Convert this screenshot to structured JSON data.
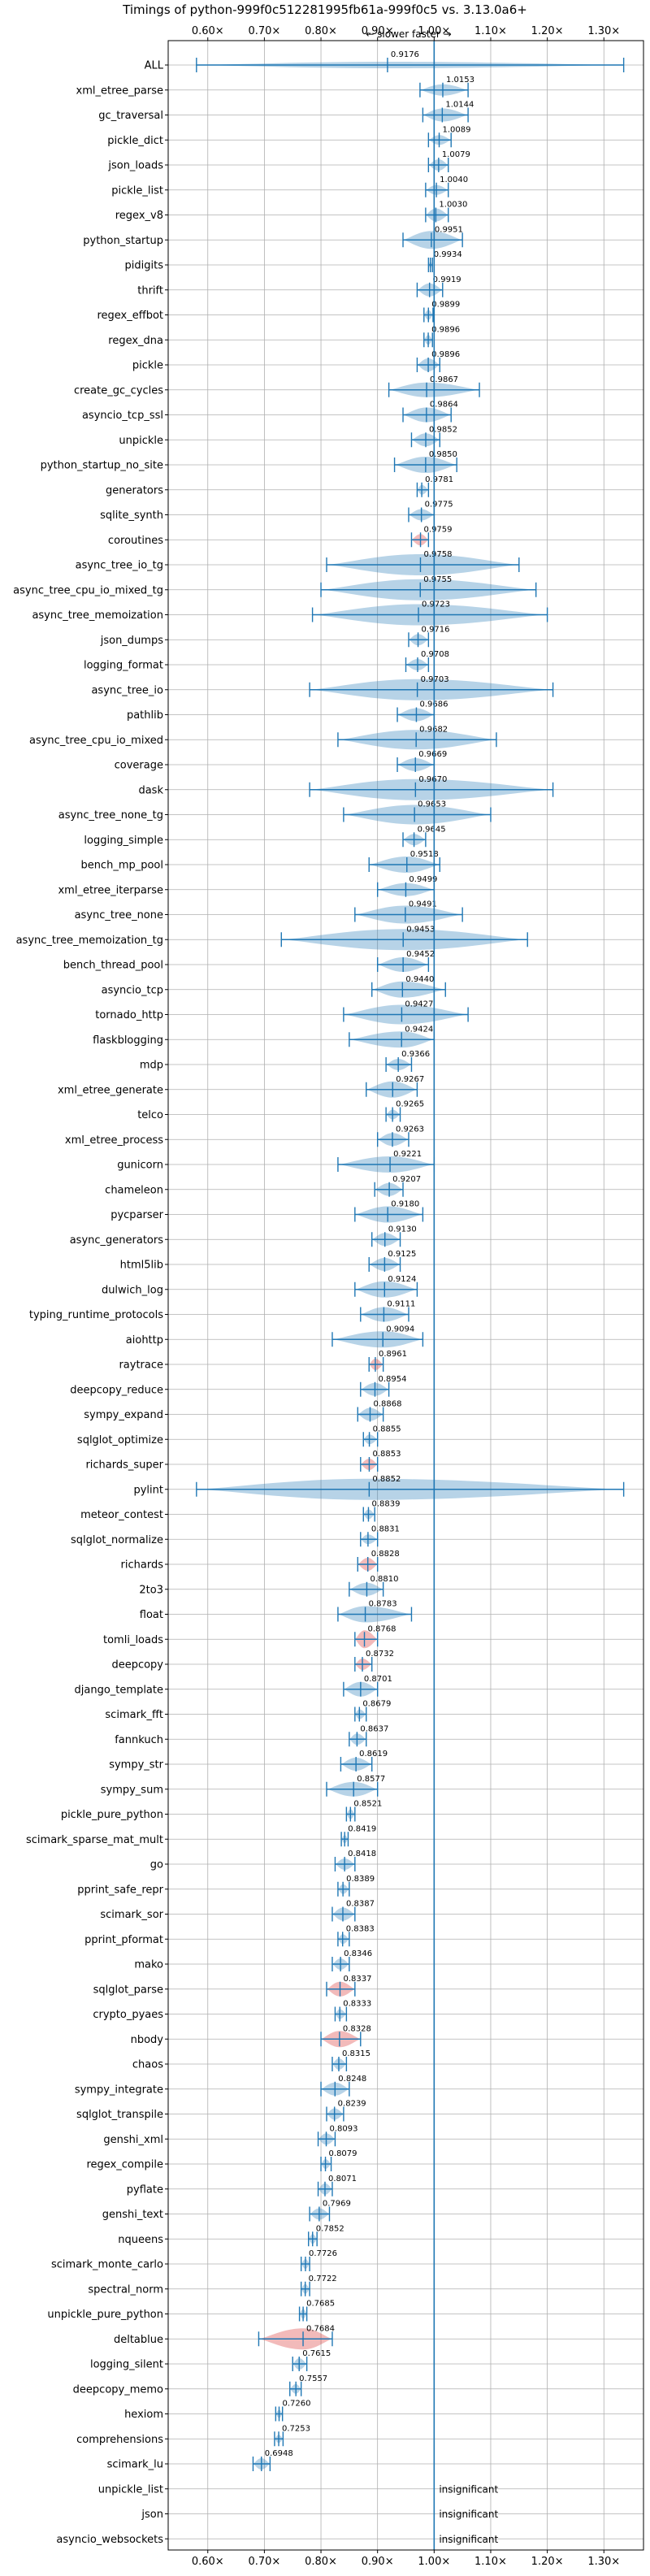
{
  "chart_data": {
    "type": "violin",
    "title": "Timings of python-999f0c512281995fb61a-999f0c5 vs. 3.13.0a6+",
    "annotation": "← slower    faster →",
    "xlim": [
      0.53,
      1.37
    ],
    "xticks": [
      0.6,
      0.7,
      0.8,
      0.9,
      1.0,
      1.1,
      1.2,
      1.3
    ],
    "xtick_labels": [
      "0.60×",
      "0.70×",
      "0.80×",
      "0.90×",
      "1.00×",
      "1.10×",
      "1.20×",
      "1.30×"
    ],
    "reference_line": 1.0,
    "grid": true,
    "colors": {
      "normal": "#1f77b4",
      "regression": "#d62728",
      "axis": "#000000",
      "grid": "#b0b0b0"
    },
    "benchmarks": [
      {
        "name": "ALL",
        "value": 0.9176,
        "lo": 0.58,
        "hi": 1.335,
        "half": 4
      },
      {
        "name": "xml_etree_parse",
        "value": 1.0153,
        "lo": 0.975,
        "hi": 1.06,
        "half": 7
      },
      {
        "name": "gc_traversal",
        "value": 1.0144,
        "lo": 0.98,
        "hi": 1.06,
        "half": 8
      },
      {
        "name": "pickle_dict",
        "value": 1.0089,
        "lo": 0.99,
        "hi": 1.03,
        "half": 6
      },
      {
        "name": "json_loads",
        "value": 1.0079,
        "lo": 0.99,
        "hi": 1.025,
        "half": 7
      },
      {
        "name": "pickle_list",
        "value": 1.004,
        "lo": 0.985,
        "hi": 1.025,
        "half": 6
      },
      {
        "name": "regex_v8",
        "value": 1.003,
        "lo": 0.985,
        "hi": 1.025,
        "half": 8
      },
      {
        "name": "python_startup",
        "value": 0.9951,
        "lo": 0.945,
        "hi": 1.05,
        "half": 11
      },
      {
        "name": "pidigits",
        "value": 0.9934,
        "lo": 0.99,
        "hi": 0.997,
        "half": 4
      },
      {
        "name": "thrift",
        "value": 0.9919,
        "lo": 0.97,
        "hi": 1.015,
        "half": 8
      },
      {
        "name": "regex_effbot",
        "value": 0.9899,
        "lo": 0.982,
        "hi": 0.998,
        "half": 6
      },
      {
        "name": "regex_dna",
        "value": 0.9896,
        "lo": 0.982,
        "hi": 0.997,
        "half": 6
      },
      {
        "name": "pickle",
        "value": 0.9896,
        "lo": 0.97,
        "hi": 1.01,
        "half": 8
      },
      {
        "name": "create_gc_cycles",
        "value": 0.9867,
        "lo": 0.92,
        "hi": 1.08,
        "half": 9
      },
      {
        "name": "asyncio_tcp_ssl",
        "value": 0.9864,
        "lo": 0.945,
        "hi": 1.03,
        "half": 9
      },
      {
        "name": "unpickle",
        "value": 0.9852,
        "lo": 0.96,
        "hi": 1.01,
        "half": 8
      },
      {
        "name": "python_startup_no_site",
        "value": 0.985,
        "lo": 0.93,
        "hi": 1.04,
        "half": 10
      },
      {
        "name": "generators",
        "value": 0.9781,
        "lo": 0.97,
        "hi": 0.99,
        "half": 6
      },
      {
        "name": "sqlite_synth",
        "value": 0.9775,
        "lo": 0.955,
        "hi": 1.0,
        "half": 7
      },
      {
        "name": "coroutines",
        "value": 0.9759,
        "lo": 0.96,
        "hi": 0.99,
        "half": 7,
        "regression": true
      },
      {
        "name": "async_tree_io_tg",
        "value": 0.9758,
        "lo": 0.81,
        "hi": 1.15,
        "half": 13
      },
      {
        "name": "async_tree_cpu_io_mixed_tg",
        "value": 0.9755,
        "lo": 0.8,
        "hi": 1.18,
        "half": 13
      },
      {
        "name": "async_tree_memoization",
        "value": 0.9723,
        "lo": 0.785,
        "hi": 1.2,
        "half": 13
      },
      {
        "name": "json_dumps",
        "value": 0.9716,
        "lo": 0.955,
        "hi": 0.99,
        "half": 7
      },
      {
        "name": "logging_format",
        "value": 0.9708,
        "lo": 0.95,
        "hi": 0.99,
        "half": 7
      },
      {
        "name": "async_tree_io",
        "value": 0.9703,
        "lo": 0.78,
        "hi": 1.21,
        "half": 13
      },
      {
        "name": "pathlib",
        "value": 0.9686,
        "lo": 0.935,
        "hi": 1.0,
        "half": 8
      },
      {
        "name": "async_tree_cpu_io_mixed",
        "value": 0.9682,
        "lo": 0.83,
        "hi": 1.11,
        "half": 12
      },
      {
        "name": "coverage",
        "value": 0.9669,
        "lo": 0.935,
        "hi": 1.0,
        "half": 8
      },
      {
        "name": "dask",
        "value": 0.967,
        "lo": 0.78,
        "hi": 1.21,
        "half": 13
      },
      {
        "name": "async_tree_none_tg",
        "value": 0.9653,
        "lo": 0.84,
        "hi": 1.1,
        "half": 12
      },
      {
        "name": "logging_simple",
        "value": 0.9645,
        "lo": 0.945,
        "hi": 0.985,
        "half": 7
      },
      {
        "name": "bench_mp_pool",
        "value": 0.9518,
        "lo": 0.885,
        "hi": 1.01,
        "half": 10
      },
      {
        "name": "xml_etree_iterparse",
        "value": 0.9499,
        "lo": 0.9,
        "hi": 1.0,
        "half": 8
      },
      {
        "name": "async_tree_none",
        "value": 0.9491,
        "lo": 0.86,
        "hi": 1.05,
        "half": 11
      },
      {
        "name": "async_tree_memoization_tg",
        "value": 0.9453,
        "lo": 0.73,
        "hi": 1.165,
        "half": 13
      },
      {
        "name": "bench_thread_pool",
        "value": 0.9452,
        "lo": 0.9,
        "hi": 0.99,
        "half": 9
      },
      {
        "name": "asyncio_tcp",
        "value": 0.944,
        "lo": 0.89,
        "hi": 1.02,
        "half": 10
      },
      {
        "name": "tornado_http",
        "value": 0.9427,
        "lo": 0.84,
        "hi": 1.06,
        "half": 12
      },
      {
        "name": "flaskblogging",
        "value": 0.9424,
        "lo": 0.85,
        "hi": 1.0,
        "half": 10
      },
      {
        "name": "mdp",
        "value": 0.9366,
        "lo": 0.915,
        "hi": 0.96,
        "half": 7
      },
      {
        "name": "xml_etree_generate",
        "value": 0.9267,
        "lo": 0.88,
        "hi": 0.97,
        "half": 10
      },
      {
        "name": "telco",
        "value": 0.9265,
        "lo": 0.915,
        "hi": 0.94,
        "half": 6
      },
      {
        "name": "xml_etree_process",
        "value": 0.9263,
        "lo": 0.9,
        "hi": 0.955,
        "half": 8
      },
      {
        "name": "gunicorn",
        "value": 0.9221,
        "lo": 0.83,
        "hi": 1.0,
        "half": 10
      },
      {
        "name": "chameleon",
        "value": 0.9207,
        "lo": 0.895,
        "hi": 0.945,
        "half": 8
      },
      {
        "name": "pycparser",
        "value": 0.918,
        "lo": 0.86,
        "hi": 0.98,
        "half": 10
      },
      {
        "name": "async_generators",
        "value": 0.913,
        "lo": 0.89,
        "hi": 0.94,
        "half": 8
      },
      {
        "name": "html5lib",
        "value": 0.9125,
        "lo": 0.885,
        "hi": 0.94,
        "half": 8
      },
      {
        "name": "dulwich_log",
        "value": 0.9124,
        "lo": 0.86,
        "hi": 0.97,
        "half": 10
      },
      {
        "name": "typing_runtime_protocols",
        "value": 0.9111,
        "lo": 0.87,
        "hi": 0.955,
        "half": 9
      },
      {
        "name": "aiohttp",
        "value": 0.9094,
        "lo": 0.82,
        "hi": 0.98,
        "half": 10
      },
      {
        "name": "raytrace",
        "value": 0.8961,
        "lo": 0.885,
        "hi": 0.91,
        "half": 7,
        "regression": true
      },
      {
        "name": "deepcopy_reduce",
        "value": 0.8954,
        "lo": 0.87,
        "hi": 0.92,
        "half": 8
      },
      {
        "name": "sympy_expand",
        "value": 0.8868,
        "lo": 0.865,
        "hi": 0.91,
        "half": 8
      },
      {
        "name": "sqlglot_optimize",
        "value": 0.8855,
        "lo": 0.875,
        "hi": 0.9,
        "half": 6
      },
      {
        "name": "richards_super",
        "value": 0.8853,
        "lo": 0.87,
        "hi": 0.9,
        "half": 7,
        "regression": true
      },
      {
        "name": "pylint",
        "value": 0.8852,
        "lo": 0.58,
        "hi": 1.335,
        "half": 13
      },
      {
        "name": "meteor_contest",
        "value": 0.8839,
        "lo": 0.875,
        "hi": 0.895,
        "half": 6
      },
      {
        "name": "sqlglot_normalize",
        "value": 0.8831,
        "lo": 0.87,
        "hi": 0.9,
        "half": 6
      },
      {
        "name": "richards",
        "value": 0.8828,
        "lo": 0.865,
        "hi": 0.9,
        "half": 8,
        "regression": true
      },
      {
        "name": "2to3",
        "value": 0.881,
        "lo": 0.85,
        "hi": 0.91,
        "half": 8
      },
      {
        "name": "float",
        "value": 0.8783,
        "lo": 0.83,
        "hi": 0.96,
        "half": 10
      },
      {
        "name": "tomli_loads",
        "value": 0.8768,
        "lo": 0.86,
        "hi": 0.9,
        "half": 11,
        "regression": true
      },
      {
        "name": "deepcopy",
        "value": 0.8732,
        "lo": 0.86,
        "hi": 0.89,
        "half": 7,
        "regression": true
      },
      {
        "name": "django_template",
        "value": 0.8701,
        "lo": 0.84,
        "hi": 0.9,
        "half": 9
      },
      {
        "name": "scimark_fft",
        "value": 0.8679,
        "lo": 0.86,
        "hi": 0.88,
        "half": 6
      },
      {
        "name": "fannkuch",
        "value": 0.8637,
        "lo": 0.85,
        "hi": 0.88,
        "half": 7
      },
      {
        "name": "sympy_str",
        "value": 0.8619,
        "lo": 0.835,
        "hi": 0.89,
        "half": 8
      },
      {
        "name": "sympy_sum",
        "value": 0.8577,
        "lo": 0.81,
        "hi": 0.9,
        "half": 9
      },
      {
        "name": "pickle_pure_python",
        "value": 0.8521,
        "lo": 0.845,
        "hi": 0.86,
        "half": 6
      },
      {
        "name": "scimark_sparse_mat_mult",
        "value": 0.8419,
        "lo": 0.836,
        "hi": 0.848,
        "half": 5
      },
      {
        "name": "go",
        "value": 0.8418,
        "lo": 0.825,
        "hi": 0.86,
        "half": 7
      },
      {
        "name": "pprint_safe_repr",
        "value": 0.8389,
        "lo": 0.83,
        "hi": 0.85,
        "half": 6
      },
      {
        "name": "scimark_sor",
        "value": 0.8387,
        "lo": 0.82,
        "hi": 0.86,
        "half": 8
      },
      {
        "name": "pprint_pformat",
        "value": 0.8383,
        "lo": 0.83,
        "hi": 0.85,
        "half": 6
      },
      {
        "name": "mako",
        "value": 0.8346,
        "lo": 0.82,
        "hi": 0.85,
        "half": 7
      },
      {
        "name": "sqlglot_parse",
        "value": 0.8337,
        "lo": 0.81,
        "hi": 0.86,
        "half": 9,
        "regression": true
      },
      {
        "name": "crypto_pyaes",
        "value": 0.8333,
        "lo": 0.825,
        "hi": 0.845,
        "half": 6
      },
      {
        "name": "nbody",
        "value": 0.8328,
        "lo": 0.8,
        "hi": 0.87,
        "half": 10,
        "regression": true
      },
      {
        "name": "chaos",
        "value": 0.8315,
        "lo": 0.82,
        "hi": 0.845,
        "half": 7
      },
      {
        "name": "sympy_integrate",
        "value": 0.8248,
        "lo": 0.8,
        "hi": 0.85,
        "half": 8
      },
      {
        "name": "sqlglot_transpile",
        "value": 0.8239,
        "lo": 0.81,
        "hi": 0.84,
        "half": 7
      },
      {
        "name": "genshi_xml",
        "value": 0.8093,
        "lo": 0.795,
        "hi": 0.825,
        "half": 7
      },
      {
        "name": "regex_compile",
        "value": 0.8079,
        "lo": 0.8,
        "hi": 0.818,
        "half": 6
      },
      {
        "name": "pyflate",
        "value": 0.8071,
        "lo": 0.795,
        "hi": 0.82,
        "half": 7
      },
      {
        "name": "genshi_text",
        "value": 0.7969,
        "lo": 0.78,
        "hi": 0.815,
        "half": 7
      },
      {
        "name": "nqueens",
        "value": 0.7852,
        "lo": 0.778,
        "hi": 0.793,
        "half": 6
      },
      {
        "name": "scimark_monte_carlo",
        "value": 0.7726,
        "lo": 0.765,
        "hi": 0.78,
        "half": 6
      },
      {
        "name": "spectral_norm",
        "value": 0.7722,
        "lo": 0.765,
        "hi": 0.78,
        "half": 6
      },
      {
        "name": "unpickle_pure_python",
        "value": 0.7685,
        "lo": 0.762,
        "hi": 0.775,
        "half": 6
      },
      {
        "name": "deltablue",
        "value": 0.7684,
        "lo": 0.69,
        "hi": 0.82,
        "half": 13,
        "regression": true
      },
      {
        "name": "logging_silent",
        "value": 0.7615,
        "lo": 0.75,
        "hi": 0.775,
        "half": 7
      },
      {
        "name": "deepcopy_memo",
        "value": 0.7557,
        "lo": 0.745,
        "hi": 0.765,
        "half": 6
      },
      {
        "name": "hexiom",
        "value": 0.726,
        "lo": 0.72,
        "hi": 0.732,
        "half": 5
      },
      {
        "name": "comprehensions",
        "value": 0.7253,
        "lo": 0.718,
        "hi": 0.733,
        "half": 5
      },
      {
        "name": "scimark_lu",
        "value": 0.6948,
        "lo": 0.68,
        "hi": 0.71,
        "half": 7
      },
      {
        "name": "unpickle_list",
        "value": null,
        "note": "insignificant"
      },
      {
        "name": "json",
        "value": null,
        "note": "insignificant"
      },
      {
        "name": "asyncio_websockets",
        "value": null,
        "note": "insignificant"
      }
    ]
  }
}
